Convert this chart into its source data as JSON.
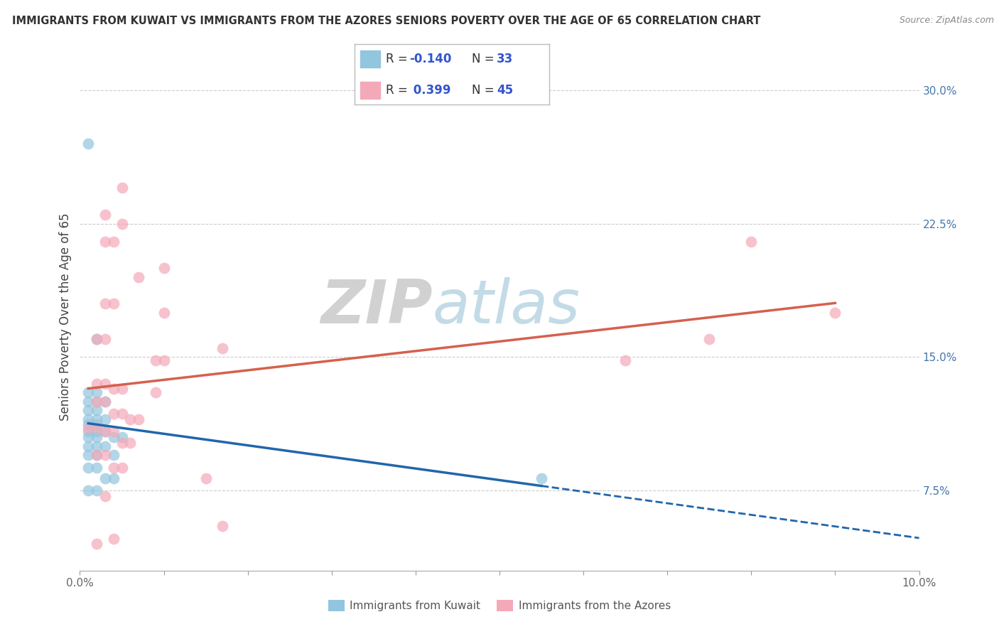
{
  "title": "IMMIGRANTS FROM KUWAIT VS IMMIGRANTS FROM THE AZORES SENIORS POVERTY OVER THE AGE OF 65 CORRELATION CHART",
  "source": "Source: ZipAtlas.com",
  "ylabel": "Seniors Poverty Over the Age of 65",
  "xlim": [
    0.0,
    0.1
  ],
  "ylim": [
    0.03,
    0.315
  ],
  "x_ticks": [
    0.0,
    0.01,
    0.02,
    0.03,
    0.04,
    0.05,
    0.06,
    0.07,
    0.08,
    0.09,
    0.1
  ],
  "x_tick_labels": [
    "0.0%",
    "",
    "",
    "",
    "",
    "",
    "",
    "",
    "",
    "",
    "10.0%"
  ],
  "y_ticks_right": [
    0.075,
    0.15,
    0.225,
    0.3
  ],
  "y_tick_labels_right": [
    "7.5%",
    "15.0%",
    "22.5%",
    "30.0%"
  ],
  "watermark_zip": "ZIP",
  "watermark_atlas": "atlas",
  "kuwait_color": "#92c5de",
  "azores_color": "#f4a9b8",
  "kuwait_line_color": "#2166ac",
  "azores_line_color": "#d6604d",
  "kuwait_scatter": [
    [
      0.001,
      0.27
    ],
    [
      0.002,
      0.16
    ],
    [
      0.001,
      0.13
    ],
    [
      0.002,
      0.13
    ],
    [
      0.001,
      0.125
    ],
    [
      0.002,
      0.125
    ],
    [
      0.003,
      0.125
    ],
    [
      0.001,
      0.12
    ],
    [
      0.002,
      0.12
    ],
    [
      0.001,
      0.115
    ],
    [
      0.002,
      0.115
    ],
    [
      0.003,
      0.115
    ],
    [
      0.001,
      0.112
    ],
    [
      0.002,
      0.112
    ],
    [
      0.001,
      0.108
    ],
    [
      0.002,
      0.108
    ],
    [
      0.003,
      0.108
    ],
    [
      0.001,
      0.105
    ],
    [
      0.002,
      0.105
    ],
    [
      0.004,
      0.105
    ],
    [
      0.005,
      0.105
    ],
    [
      0.001,
      0.1
    ],
    [
      0.002,
      0.1
    ],
    [
      0.003,
      0.1
    ],
    [
      0.001,
      0.095
    ],
    [
      0.002,
      0.095
    ],
    [
      0.004,
      0.095
    ],
    [
      0.001,
      0.088
    ],
    [
      0.002,
      0.088
    ],
    [
      0.003,
      0.082
    ],
    [
      0.004,
      0.082
    ],
    [
      0.001,
      0.075
    ],
    [
      0.002,
      0.075
    ],
    [
      0.055,
      0.082
    ]
  ],
  "azores_scatter": [
    [
      0.005,
      0.245
    ],
    [
      0.003,
      0.23
    ],
    [
      0.005,
      0.225
    ],
    [
      0.003,
      0.215
    ],
    [
      0.004,
      0.215
    ],
    [
      0.01,
      0.2
    ],
    [
      0.007,
      0.195
    ],
    [
      0.003,
      0.18
    ],
    [
      0.004,
      0.18
    ],
    [
      0.01,
      0.175
    ],
    [
      0.002,
      0.16
    ],
    [
      0.003,
      0.16
    ],
    [
      0.017,
      0.155
    ],
    [
      0.009,
      0.148
    ],
    [
      0.01,
      0.148
    ],
    [
      0.002,
      0.135
    ],
    [
      0.003,
      0.135
    ],
    [
      0.004,
      0.132
    ],
    [
      0.005,
      0.132
    ],
    [
      0.009,
      0.13
    ],
    [
      0.002,
      0.125
    ],
    [
      0.003,
      0.125
    ],
    [
      0.004,
      0.118
    ],
    [
      0.005,
      0.118
    ],
    [
      0.006,
      0.115
    ],
    [
      0.007,
      0.115
    ],
    [
      0.001,
      0.11
    ],
    [
      0.002,
      0.11
    ],
    [
      0.003,
      0.108
    ],
    [
      0.004,
      0.108
    ],
    [
      0.005,
      0.102
    ],
    [
      0.006,
      0.102
    ],
    [
      0.002,
      0.095
    ],
    [
      0.003,
      0.095
    ],
    [
      0.004,
      0.088
    ],
    [
      0.005,
      0.088
    ],
    [
      0.015,
      0.082
    ],
    [
      0.003,
      0.072
    ],
    [
      0.017,
      0.055
    ],
    [
      0.075,
      0.16
    ],
    [
      0.08,
      0.215
    ],
    [
      0.065,
      0.148
    ],
    [
      0.09,
      0.175
    ],
    [
      0.002,
      0.045
    ],
    [
      0.004,
      0.048
    ]
  ]
}
